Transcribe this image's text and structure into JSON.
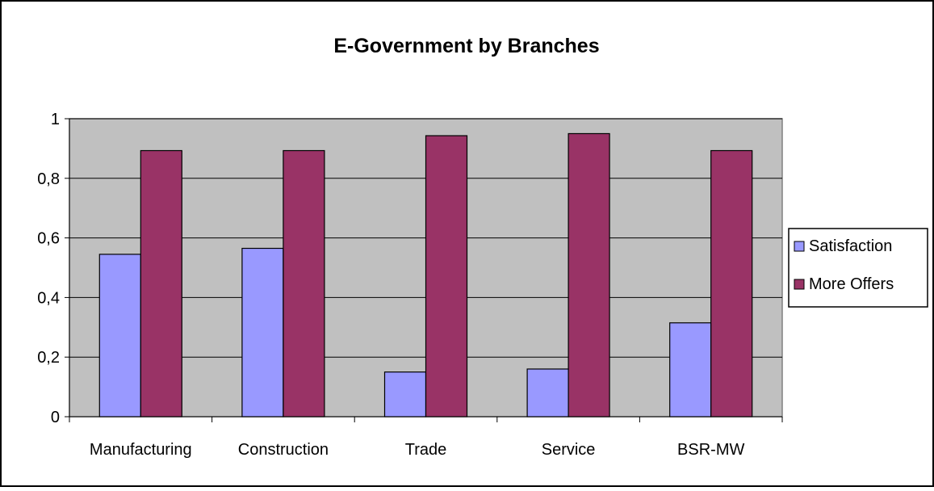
{
  "chart_data": {
    "type": "bar",
    "title": "E-Government by Branches",
    "xlabel": "",
    "ylabel": "",
    "categories": [
      "Manufacturing",
      "Construction",
      "Trade",
      "Service",
      "BSR-MW"
    ],
    "series": [
      {
        "name": "Satisfaction",
        "color": "#9999ff",
        "values": [
          0.545,
          0.565,
          0.15,
          0.16,
          0.315
        ]
      },
      {
        "name": "More Offers",
        "color": "#993366",
        "values": [
          0.893,
          0.893,
          0.943,
          0.95,
          0.893
        ]
      }
    ],
    "ylim": [
      0,
      1
    ],
    "yticks": [
      0,
      0.2,
      0.4,
      0.6,
      0.8,
      1
    ],
    "ytick_labels": [
      "0",
      "0,2",
      "0,4",
      "0,6",
      "0,8",
      "1"
    ],
    "grid": true,
    "plot_background": "#c0c0c0",
    "legend_position": "right"
  }
}
